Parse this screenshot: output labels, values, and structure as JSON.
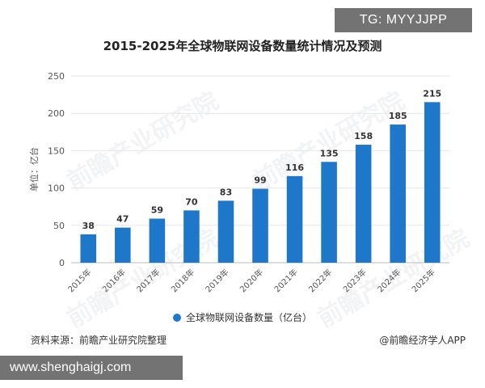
{
  "overlay": {
    "tag": "TG: MYYJJPP",
    "site": "www.shenghaigj.com"
  },
  "watermark": "前瞻产业研究院",
  "footer": {
    "source": "资料来源：前瞻产业研究院整理",
    "credit": "@前瞻经济学人APP"
  },
  "colors": {
    "bar": "#1f77c9"
  },
  "chart_data": {
    "type": "bar",
    "title": "2015-2025年全球物联网设备数量统计情况及预测",
    "ylabel": "单位：亿台",
    "xlabel": "",
    "categories": [
      "2015年",
      "2016年",
      "2017年",
      "2018年",
      "2019年",
      "2020年",
      "2021年",
      "2022年",
      "2023年",
      "2024年",
      "2025年"
    ],
    "series": [
      {
        "name": "全球物联网设备数量（亿台）",
        "values": [
          38,
          47,
          59,
          70,
          83,
          99,
          116,
          135,
          158,
          185,
          215
        ]
      }
    ],
    "ylim": [
      0,
      250
    ],
    "yticks": [
      0,
      50,
      100,
      150,
      200,
      250
    ],
    "grid": true,
    "legend": "bottom"
  }
}
